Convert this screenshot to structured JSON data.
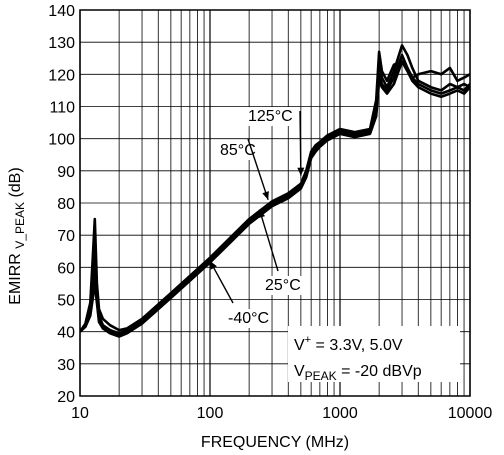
{
  "chart_data": {
    "type": "line",
    "xscale": "log",
    "xlim": [
      10,
      10000
    ],
    "ylim": [
      20,
      140
    ],
    "x_ticks": [
      10,
      100,
      1000,
      10000
    ],
    "x_tick_labels": [
      "10",
      "100",
      "1000",
      "10000"
    ],
    "y_ticks": [
      20,
      30,
      40,
      50,
      60,
      70,
      80,
      90,
      100,
      110,
      120,
      130,
      140
    ],
    "y_tick_labels": [
      "20",
      "30",
      "40",
      "50",
      "60",
      "70",
      "80",
      "90",
      "100",
      "110",
      "120",
      "130",
      "140"
    ],
    "xlabel": "FREQUENCY (MHz)",
    "ylabel_main": "EMIRR ",
    "ylabel_sub": "V_PEAK",
    "ylabel_end": " (dB)",
    "grid": true,
    "series": [
      {
        "name": "125°C",
        "x": [
          10,
          11,
          12,
          12.5,
          13,
          13.5,
          14,
          15,
          17,
          20,
          23,
          30,
          50,
          100,
          200,
          300,
          400,
          500,
          550,
          600,
          650,
          700,
          800,
          1000,
          1300,
          1700,
          1900,
          2000,
          2100,
          2300,
          2600,
          3000,
          3300,
          3600,
          4000,
          5000,
          6000,
          7000,
          8000,
          9000,
          10000
        ],
        "y": [
          40,
          42.5,
          49,
          62,
          75,
          55,
          47,
          44,
          42,
          40.5,
          41,
          44,
          52,
          63,
          75,
          80.5,
          83,
          86,
          90,
          96,
          98,
          99,
          101,
          103,
          102,
          103,
          112,
          127,
          121,
          118,
          123,
          124,
          122,
          119,
          120,
          121,
          120,
          122,
          118,
          119,
          120
        ]
      },
      {
        "name": "85°C",
        "x": [
          10,
          11,
          12,
          12.5,
          13,
          13.5,
          14,
          15,
          17,
          20,
          23,
          30,
          50,
          100,
          200,
          300,
          400,
          500,
          550,
          600,
          650,
          700,
          800,
          1000,
          1300,
          1700,
          1900,
          2000,
          2100,
          2300,
          2600,
          3000,
          3300,
          3600,
          4000,
          5000,
          6000,
          7000,
          8000,
          9000,
          10000
        ],
        "y": [
          40,
          42,
          47,
          56,
          65,
          52,
          45,
          42,
          40.5,
          39.5,
          40.5,
          43.5,
          51.5,
          62.5,
          74.5,
          80,
          82.5,
          85.5,
          89,
          95,
          97,
          98.5,
          100.5,
          102.5,
          101.5,
          102.5,
          110,
          124,
          119,
          116,
          121,
          129,
          126,
          122,
          118,
          116,
          115,
          117,
          116,
          117,
          116
        ]
      },
      {
        "name": "25°C",
        "x": [
          10,
          11,
          12,
          12.5,
          13,
          13.5,
          14,
          15,
          17,
          20,
          23,
          30,
          50,
          100,
          200,
          300,
          400,
          500,
          550,
          600,
          650,
          700,
          800,
          1000,
          1300,
          1700,
          1900,
          2000,
          2100,
          2300,
          2600,
          3000,
          3300,
          3600,
          4000,
          5000,
          6000,
          7000,
          8000,
          9000,
          10000
        ],
        "y": [
          40,
          42,
          46,
          53,
          58,
          50,
          44,
          41.5,
          40,
          39,
          40,
          43,
          51,
          62,
          74,
          79.5,
          82,
          85,
          88.5,
          94.5,
          96.5,
          98,
          100,
          102,
          101,
          102,
          108,
          120,
          117,
          115,
          119,
          126,
          122,
          119,
          117,
          115,
          114,
          115,
          116,
          115,
          117
        ]
      },
      {
        "name": "-40°C",
        "x": [
          10,
          11,
          12,
          12.5,
          13,
          13.5,
          14,
          15,
          17,
          20,
          23,
          30,
          50,
          100,
          200,
          300,
          400,
          500,
          550,
          600,
          650,
          700,
          800,
          1000,
          1300,
          1700,
          1900,
          2000,
          2100,
          2300,
          2600,
          3000,
          3300,
          3600,
          4000,
          5000,
          6000,
          7000,
          8000,
          9000,
          10000
        ],
        "y": [
          40,
          41.5,
          45,
          50,
          55,
          49,
          43,
          41,
          39.5,
          38.5,
          39.5,
          42.5,
          50.5,
          61.5,
          73.5,
          79,
          81.5,
          84.5,
          88,
          94,
          96,
          97.5,
          99.5,
          101.5,
          100.5,
          101.5,
          107,
          118,
          116,
          114,
          117,
          124,
          121,
          118,
          116,
          114,
          113,
          114,
          115,
          114,
          116
        ]
      }
    ],
    "annotations": [
      {
        "text": "125°C",
        "target_x": 500,
        "target_y": 88.5
      },
      {
        "text": "85°C",
        "target_x": 280,
        "target_y": 81
      },
      {
        "text": "25°C",
        "target_x": 240,
        "target_y": 78
      },
      {
        "text": "-40°C",
        "target_x": 100,
        "target_y": 62
      }
    ],
    "legend_line1_prefix": "V",
    "legend_line1_sup": "+",
    "legend_line1_rest": " = 3.3V, 5.0V",
    "legend_line2_prefix": "V",
    "legend_line2_sub": "PEAK",
    "legend_line2_rest": " = -20 dBVp"
  }
}
